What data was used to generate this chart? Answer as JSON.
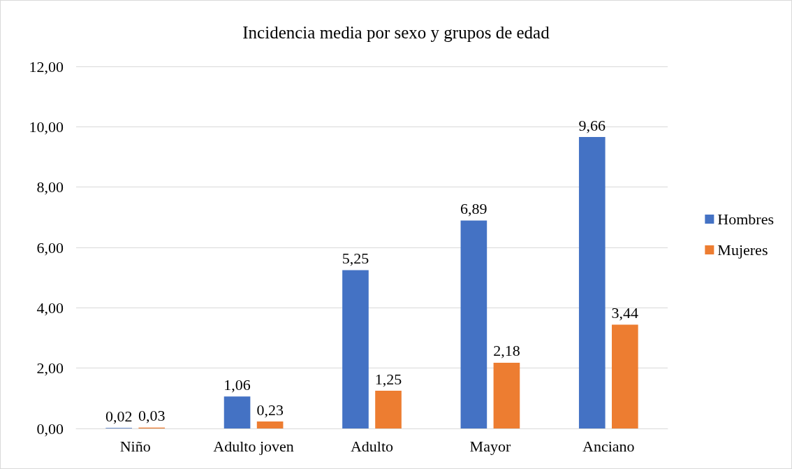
{
  "chart_data": {
    "type": "bar",
    "title": "Incidencia media por sexo y grupos de edad",
    "categories": [
      "Niño",
      "Adulto joven",
      "Adulto",
      "Mayor",
      "Anciano"
    ],
    "series": [
      {
        "name": "Hombres",
        "color": "#4472c4",
        "values": [
          0.02,
          1.06,
          5.25,
          6.89,
          9.66
        ],
        "value_labels": [
          "0,02",
          "1,06",
          "5,25",
          "6,89",
          "9,66"
        ]
      },
      {
        "name": "Mujeres",
        "color": "#ed7d31",
        "values": [
          0.03,
          0.23,
          1.25,
          2.18,
          3.44
        ],
        "value_labels": [
          "0,03",
          "0,23",
          "1,25",
          "2,18",
          "3,44"
        ]
      }
    ],
    "ylim": [
      0,
      12
    ],
    "yticks": [
      {
        "value": 0,
        "label": "0,00"
      },
      {
        "value": 2,
        "label": "2,00"
      },
      {
        "value": 4,
        "label": "4,00"
      },
      {
        "value": 6,
        "label": "6,00"
      },
      {
        "value": 8,
        "label": "8,00"
      },
      {
        "value": 10,
        "label": "10,00"
      },
      {
        "value": 12,
        "label": "12,00"
      }
    ],
    "grid": "y",
    "legend": "right"
  }
}
